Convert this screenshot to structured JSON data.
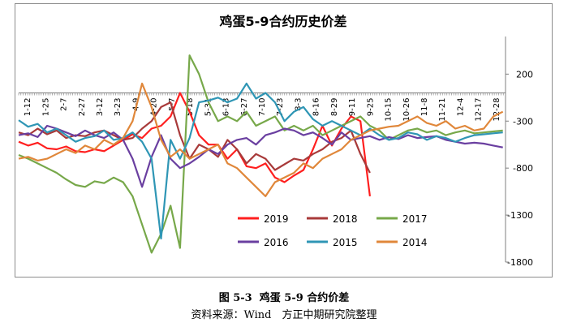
{
  "figure": {
    "caption_num": "图 5-3",
    "caption_text": "鸡蛋 5-9 合约价差",
    "source": "资料来源：Wind　方正中期研究院整理"
  },
  "chart_data": {
    "type": "line",
    "title": "鸡蛋5-9合约历史价差",
    "ylim": [
      -1800,
      600
    ],
    "yticks": [
      200,
      -300,
      -800,
      -1300,
      -1800
    ],
    "xticks": [
      "1-12",
      "1-25",
      "2-7",
      "2-27",
      "3-12",
      "3-23",
      "4-9",
      "4-20",
      "5-7",
      "5-18",
      "5-31",
      "6-13",
      "6-27",
      "7-10",
      "7-23",
      "8-3",
      "8-16",
      "8-29",
      "9-11",
      "9-25",
      "10-15",
      "10-26",
      "11-8",
      "11-21",
      "12-4",
      "12-17",
      "12-28"
    ],
    "grid": false,
    "legend_position": "lower-center",
    "series": [
      {
        "name": "2019",
        "color": "#ff1f1f",
        "x": [
          1,
          8,
          15,
          22,
          29,
          36,
          43,
          50,
          57,
          64,
          71,
          78,
          85,
          92,
          99,
          106,
          113,
          120,
          127,
          134,
          141,
          148,
          155,
          162,
          169,
          176,
          183,
          190,
          197,
          204,
          211,
          218,
          225,
          232,
          239,
          246,
          253,
          260
        ],
        "y": [
          -520,
          -560,
          -530,
          -590,
          -600,
          -570,
          -620,
          -630,
          -600,
          -620,
          -560,
          -500,
          -440,
          -480,
          -380,
          -350,
          -250,
          0,
          -200,
          -450,
          -550,
          -550,
          -700,
          -600,
          -780,
          -800,
          -750,
          -900,
          -950,
          -880,
          -820,
          -600,
          -350,
          -560,
          -380,
          -250,
          -300,
          -1100
        ]
      },
      {
        "name": "2018",
        "color": "#a83a3a",
        "x": [
          1,
          8,
          15,
          22,
          29,
          36,
          43,
          50,
          57,
          64,
          71,
          78,
          85,
          92,
          99,
          106,
          113,
          120,
          127,
          134,
          141,
          148,
          155,
          162,
          169,
          176,
          183,
          190,
          197,
          204,
          211,
          218,
          225,
          232,
          239,
          246,
          253,
          260
        ],
        "y": [
          -420,
          -450,
          -380,
          -440,
          -400,
          -480,
          -450,
          -460,
          -420,
          -400,
          -450,
          -500,
          -480,
          -380,
          -300,
          -150,
          -100,
          -450,
          -700,
          -550,
          -600,
          -680,
          -500,
          -600,
          -750,
          -650,
          -700,
          -820,
          -760,
          -700,
          -720,
          -650,
          -600,
          -520,
          -480,
          -400,
          -650,
          -850
        ]
      },
      {
        "name": "2017",
        "color": "#77a84a",
        "x": [
          1,
          8,
          15,
          22,
          29,
          36,
          43,
          50,
          57,
          64,
          71,
          78,
          85,
          92,
          99,
          106,
          113,
          120,
          127,
          134,
          141,
          148,
          155,
          162,
          169,
          176,
          183,
          190,
          197,
          204,
          211,
          218,
          225,
          232,
          239,
          246,
          253,
          260,
          267,
          274,
          281,
          288,
          295,
          302,
          309,
          316,
          323,
          330,
          337,
          344,
          351,
          358
        ],
        "y": [
          -660,
          -700,
          -750,
          -800,
          -850,
          -920,
          -980,
          -1000,
          -940,
          -960,
          -900,
          -950,
          -1100,
          -1400,
          -1700,
          -1500,
          -1200,
          -1650,
          400,
          200,
          -100,
          -300,
          -250,
          -300,
          -200,
          -350,
          -300,
          -250,
          -400,
          -350,
          -400,
          -350,
          -450,
          -400,
          -350,
          -300,
          -250,
          -350,
          -400,
          -500,
          -450,
          -400,
          -380,
          -420,
          -400,
          -450,
          -420,
          -400,
          -430,
          -420,
          -410,
          -400
        ]
      },
      {
        "name": "2016",
        "color": "#6a3fa0",
        "x": [
          1,
          8,
          15,
          22,
          29,
          36,
          43,
          50,
          57,
          64,
          71,
          78,
          85,
          92,
          99,
          106,
          113,
          120,
          127,
          134,
          141,
          148,
          155,
          162,
          169,
          176,
          183,
          190,
          197,
          204,
          211,
          218,
          225,
          232,
          239,
          246,
          253,
          260,
          267,
          274,
          281,
          288,
          295,
          302,
          309,
          316,
          323,
          330,
          337,
          344,
          351,
          358
        ],
        "y": [
          -450,
          -430,
          -470,
          -350,
          -380,
          -420,
          -460,
          -400,
          -450,
          -480,
          -420,
          -500,
          -700,
          -1000,
          -680,
          -450,
          -700,
          -800,
          -750,
          -680,
          -600,
          -650,
          -550,
          -500,
          -480,
          -550,
          -450,
          -420,
          -380,
          -400,
          -450,
          -420,
          -480,
          -550,
          -420,
          -500,
          -480,
          -460,
          -500,
          -470,
          -490,
          -450,
          -480,
          -470,
          -460,
          -500,
          -520,
          -540,
          -530,
          -540,
          -560,
          -580
        ]
      },
      {
        "name": "2015",
        "color": "#2f96b5",
        "x": [
          1,
          8,
          15,
          22,
          29,
          36,
          43,
          50,
          57,
          64,
          71,
          78,
          85,
          92,
          99,
          106,
          113,
          120,
          127,
          134,
          141,
          148,
          155,
          162,
          169,
          176,
          183,
          190,
          197,
          204,
          211,
          218,
          225,
          232,
          239,
          246,
          253,
          260,
          267,
          274,
          281,
          288,
          295,
          302,
          309,
          316,
          323,
          330,
          337,
          344,
          351,
          358
        ],
        "y": [
          -290,
          -360,
          -330,
          -420,
          -380,
          -450,
          -520,
          -480,
          -460,
          -400,
          -500,
          -480,
          -420,
          -520,
          -700,
          -1550,
          -500,
          -700,
          -480,
          -100,
          -80,
          -50,
          -100,
          -60,
          100,
          -60,
          0,
          -100,
          -300,
          -200,
          -150,
          -280,
          -350,
          -300,
          -350,
          -400,
          -450,
          -380,
          -450,
          -500,
          -480,
          -420,
          -440,
          -500,
          -460,
          -480,
          -520,
          -480,
          -450,
          -440,
          -430,
          -420
        ]
      },
      {
        "name": "2014",
        "color": "#e0873a",
        "x": [
          1,
          8,
          15,
          22,
          29,
          36,
          43,
          50,
          57,
          64,
          71,
          78,
          85,
          92,
          99,
          106,
          113,
          120,
          127,
          134,
          141,
          148,
          155,
          162,
          169,
          176,
          183,
          190,
          197,
          204,
          211,
          218,
          225,
          232,
          239,
          246,
          253,
          260,
          267,
          274,
          281,
          288,
          295,
          302,
          309,
          316,
          323,
          330,
          337,
          344,
          351,
          358
        ],
        "y": [
          -700,
          -680,
          -720,
          -700,
          -650,
          -600,
          -640,
          -560,
          -600,
          -500,
          -550,
          -480,
          -300,
          100,
          -150,
          -500,
          -680,
          -600,
          -700,
          -650,
          -600,
          -550,
          -750,
          -800,
          -900,
          -1000,
          -1100,
          -950,
          -900,
          -850,
          -750,
          -800,
          -700,
          -650,
          -600,
          -500,
          -450,
          -400,
          -380,
          -360,
          -350,
          -300,
          -250,
          -320,
          -350,
          -300,
          -380,
          -350,
          -400,
          -380,
          -250,
          -200
        ]
      }
    ]
  }
}
